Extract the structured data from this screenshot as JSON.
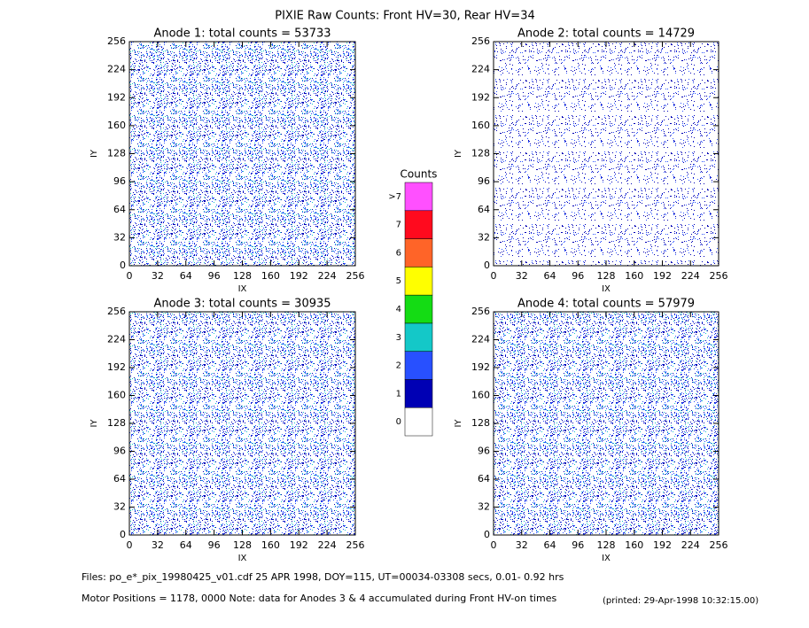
{
  "title": "PIXIE Raw Counts:  Front HV=30, Rear HV=34",
  "chart_data": [
    {
      "type": "heatmap",
      "title": "Anode 1: total counts = 53733",
      "xlabel": "IX",
      "ylabel": "IY",
      "xlim": [
        0,
        256
      ],
      "ylim": [
        0,
        256
      ],
      "xticks": [
        0,
        32,
        64,
        96,
        128,
        160,
        192,
        224,
        256
      ],
      "yticks": [
        0,
        32,
        64,
        96,
        128,
        160,
        192,
        224,
        256
      ]
    },
    {
      "type": "heatmap",
      "title": "Anode 2: total counts = 14729",
      "xlabel": "IX",
      "ylabel": "IY",
      "xlim": [
        0,
        256
      ],
      "ylim": [
        0,
        256
      ],
      "xticks": [
        0,
        32,
        64,
        96,
        128,
        160,
        192,
        224,
        256
      ],
      "yticks": [
        0,
        32,
        64,
        96,
        128,
        160,
        192,
        224,
        256
      ]
    },
    {
      "type": "heatmap",
      "title": "Anode 3: total counts = 30935",
      "xlabel": "IX",
      "ylabel": "IY",
      "xlim": [
        0,
        256
      ],
      "ylim": [
        0,
        256
      ],
      "xticks": [
        0,
        32,
        64,
        96,
        128,
        160,
        192,
        224,
        256
      ],
      "yticks": [
        0,
        32,
        64,
        96,
        128,
        160,
        192,
        224,
        256
      ]
    },
    {
      "type": "heatmap",
      "title": "Anode 4: total counts = 57979",
      "xlabel": "IX",
      "ylabel": "IY",
      "xlim": [
        0,
        256
      ],
      "ylim": [
        0,
        256
      ],
      "xticks": [
        0,
        32,
        64,
        96,
        128,
        160,
        192,
        224,
        256
      ],
      "yticks": [
        0,
        32,
        64,
        96,
        128,
        160,
        192,
        224,
        256
      ]
    }
  ],
  "colorbar": {
    "title": "Counts",
    "labels": [
      "0",
      "1",
      "2",
      "3",
      "4",
      "5",
      "6",
      "7",
      ">7"
    ],
    "colors": [
      "#ffffff",
      "#0000b4",
      "#2850ff",
      "#14c8c8",
      "#14dc14",
      "#ffff00",
      "#ff6428",
      "#ff0a1e",
      "#ff50ff"
    ]
  },
  "footer": {
    "files": "Files: po_e*_pix_19980425_v01.cdf    25 APR 1998, DOY=115, UT=00034-03308 secs,  0.01- 0.92 hrs",
    "motor": "Motor Positions = 1178, 0000   Note: data for Anodes 3 & 4 accumulated during Front HV-on times",
    "printed": "(printed: 29-Apr-1998 10:32:15.00)"
  }
}
